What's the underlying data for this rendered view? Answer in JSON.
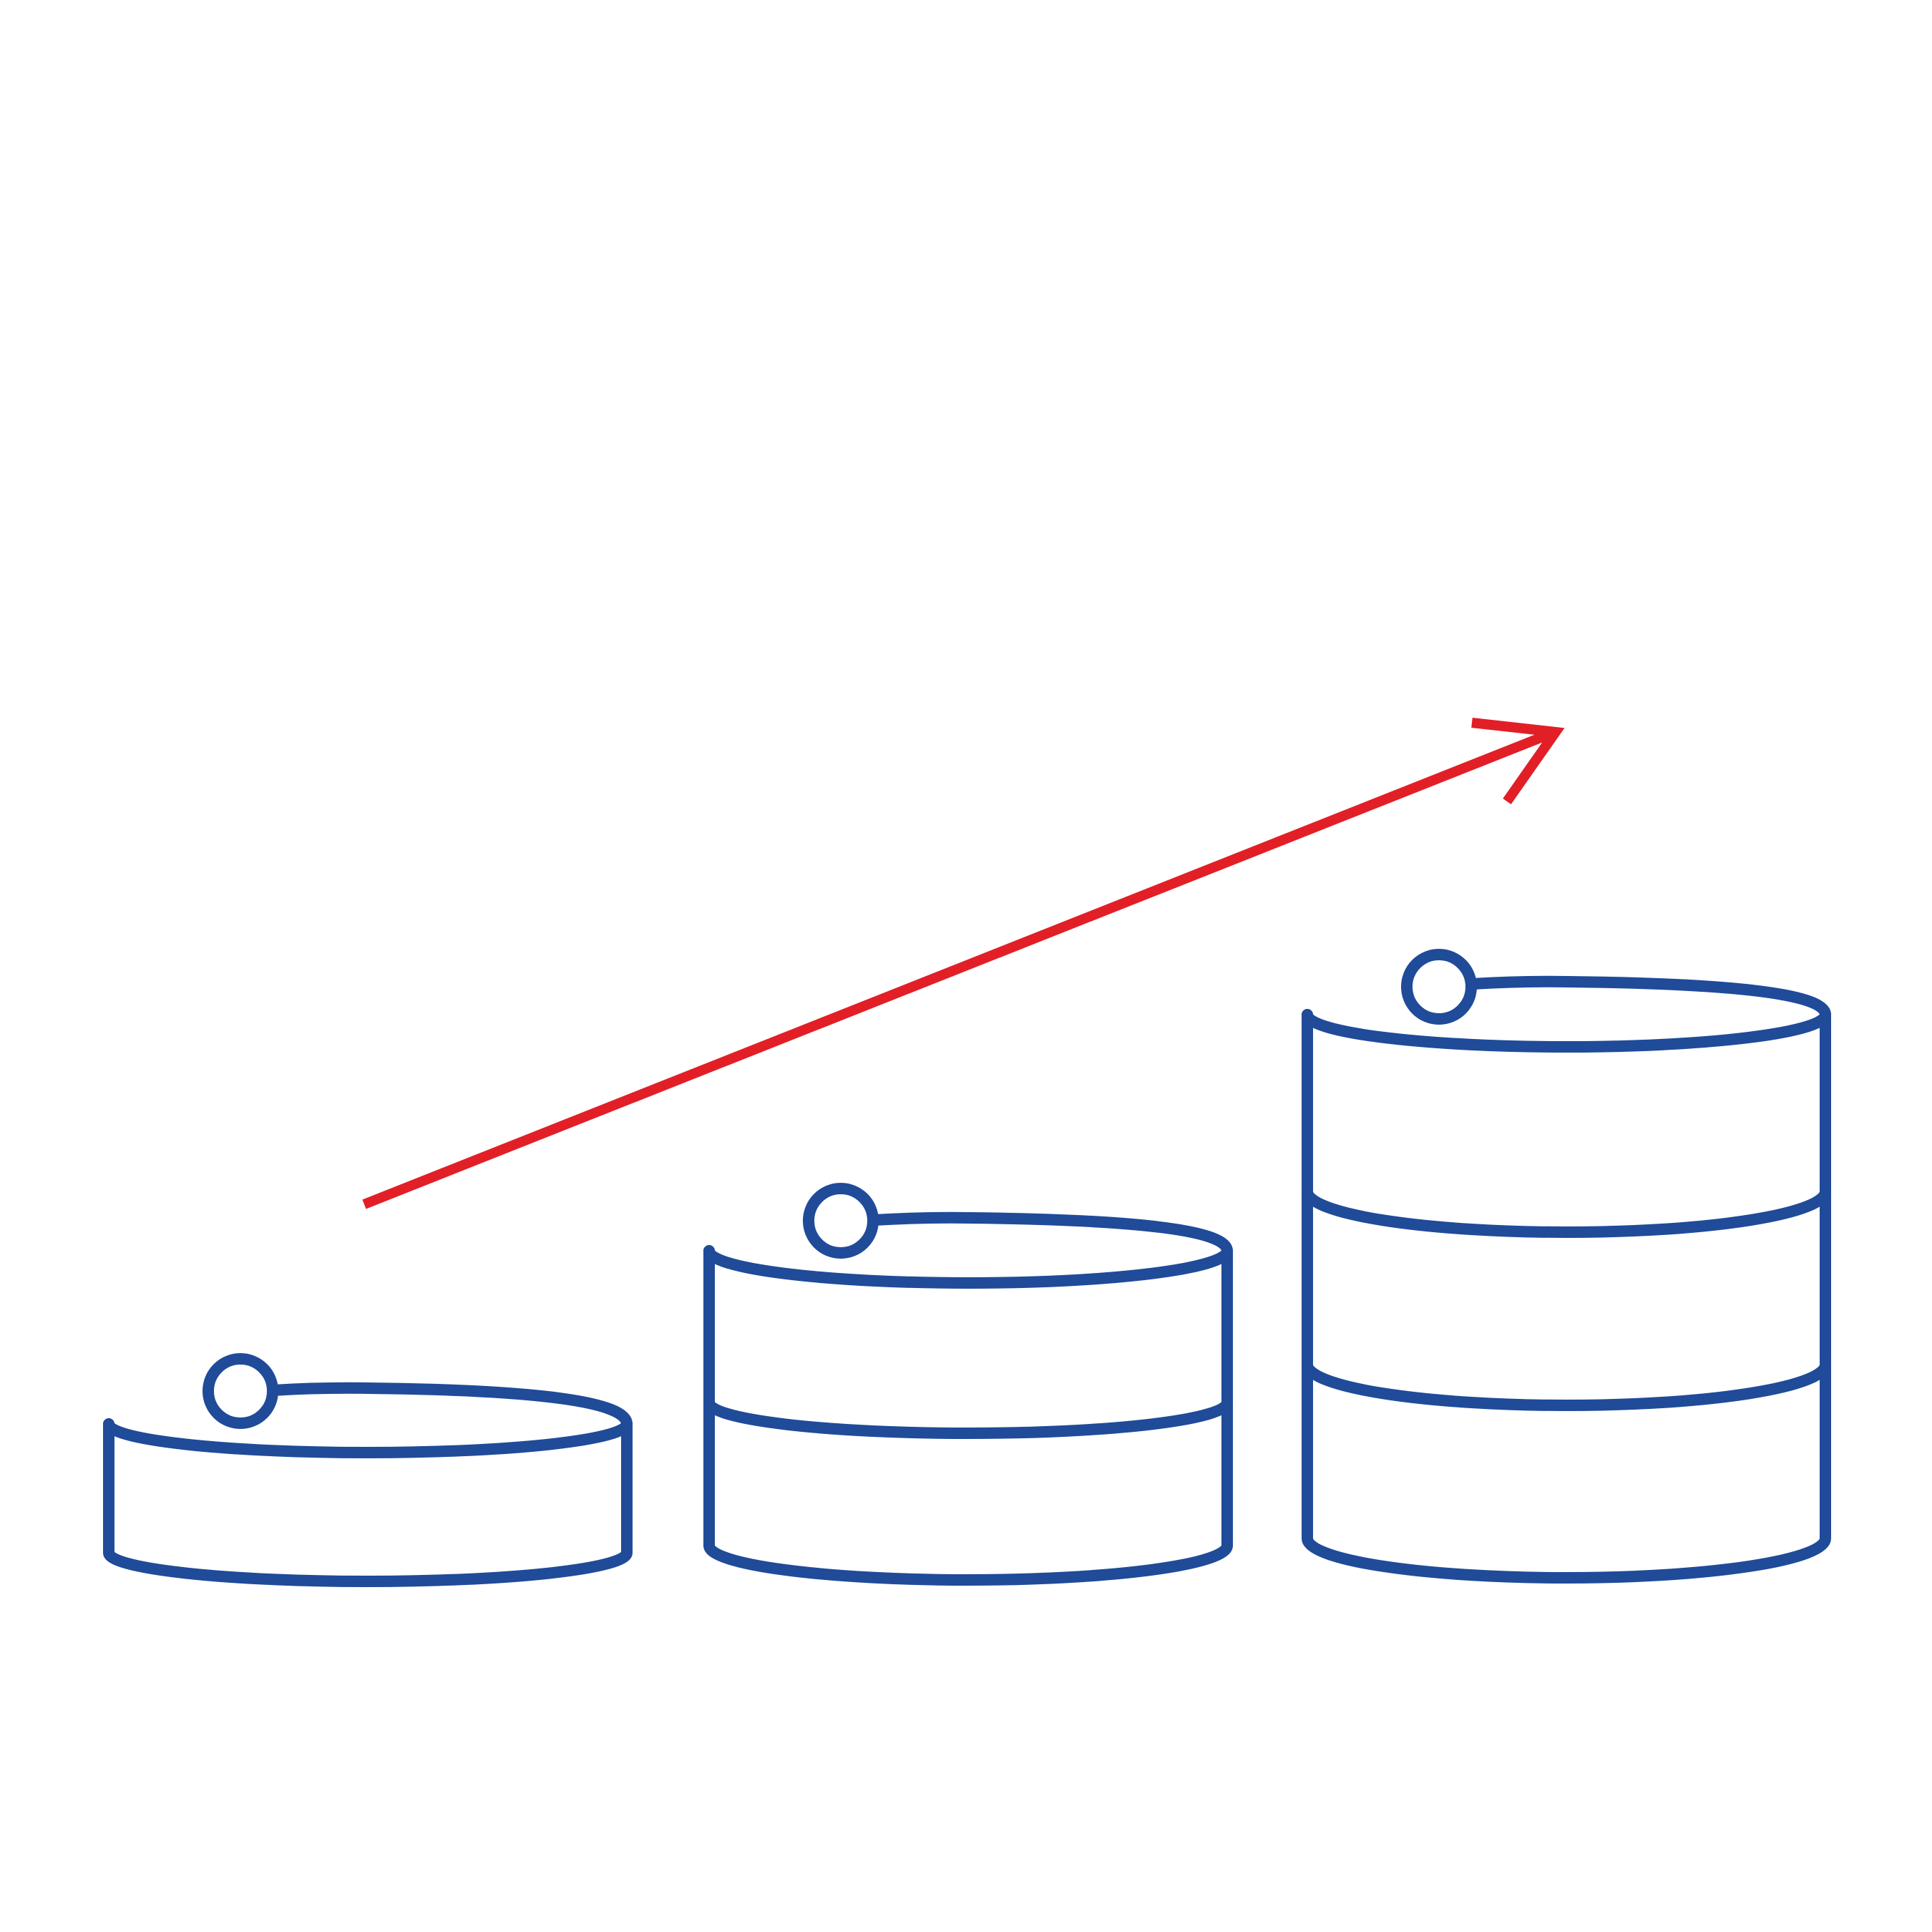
{
  "illustration": {
    "subject": "growth",
    "stroke_color": "#1f4b99",
    "arrow_color": "#e21f26",
    "background": "#ffffff"
  },
  "stacks": [
    {
      "label": "stack-small",
      "levels": 1
    },
    {
      "label": "stack-medium",
      "levels": 2
    },
    {
      "label": "stack-large",
      "levels": 3
    }
  ],
  "trend_arrow": {
    "direction": "up-right",
    "icon": "trend-arrow-icon"
  }
}
